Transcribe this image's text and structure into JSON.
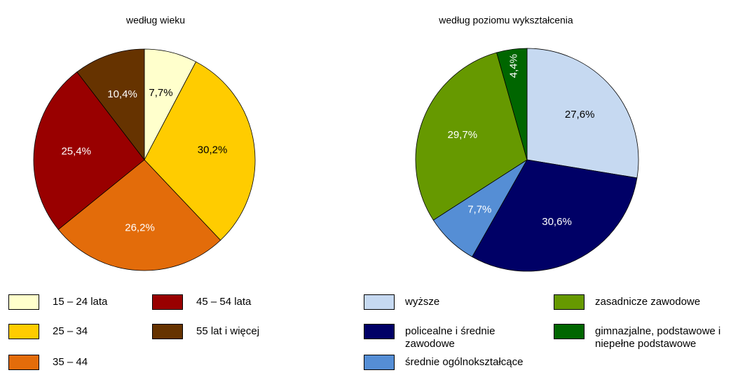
{
  "chart_data": [
    {
      "type": "pie",
      "title": "według wieku",
      "categories": [
        "15 – 24 lata",
        "25 – 34",
        "35 – 44",
        "45 – 54 lata",
        "55 lat i więcej"
      ],
      "values": [
        7.7,
        30.2,
        26.2,
        25.4,
        10.4
      ],
      "value_labels": [
        "7,7%",
        "30,2%",
        "26,2%",
        "25,4%",
        "10,4%"
      ],
      "colors": [
        "#ffffcc",
        "#ffcc00",
        "#e36c0a",
        "#990000",
        "#663300"
      ]
    },
    {
      "type": "pie",
      "title": "według poziomu wykształcenia",
      "categories": [
        "wyższe",
        "policealne i średnie zawodowe",
        "średnie ogólnokształcące",
        "zasadnicze zawodowe",
        "gimnazjalne, podstawowe i niepełne podstawowe"
      ],
      "values": [
        27.6,
        30.6,
        7.7,
        29.7,
        4.4
      ],
      "value_labels": [
        "27,6%",
        "30,6%",
        "7,7%",
        "29,7%",
        "4,4%"
      ],
      "colors": [
        "#c6d9f1",
        "#000066",
        "#558ed5",
        "#669900",
        "#006600"
      ]
    }
  ]
}
